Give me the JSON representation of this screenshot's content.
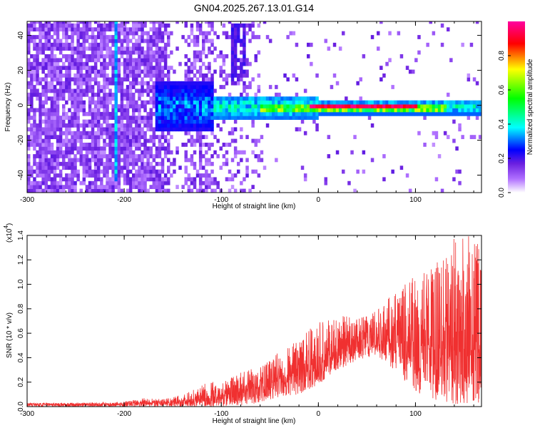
{
  "title": "GN04.2025.267.13.01.G14",
  "chart_data": [
    {
      "type": "heatmap",
      "xlabel": "Height of straight line (km)",
      "ylabel": "Frequency (Hz)",
      "xlim": [
        -300,
        168
      ],
      "ylim": [
        -50,
        48
      ],
      "xticks": [
        -300,
        -200,
        -100,
        0,
        100
      ],
      "yticks": [
        -40,
        -20,
        0,
        20,
        40
      ],
      "grid": false,
      "colorbar": {
        "label": "Normalized spectral amplitude",
        "range": [
          0.0,
          1.0
        ],
        "ticks": [
          0.0,
          0.2,
          0.4,
          0.6,
          0.8
        ],
        "colormap": [
          "#ffffff",
          "#6a1fe0",
          "#0000ff",
          "#00ffff",
          "#00ff00",
          "#ffff00",
          "#ff0000",
          "#ff00a0"
        ]
      },
      "features": [
        {
          "name": "signal-band",
          "x_range": [
            -130,
            168
          ],
          "frequency": -2,
          "description": "narrow band near 0 Hz"
        },
        {
          "name": "peak-segment",
          "x_range": [
            -10,
            100
          ],
          "frequency": -2,
          "amplitude": 1.0
        },
        {
          "name": "vertical-streak",
          "x": -210,
          "frequency_range": [
            -45,
            48
          ]
        },
        {
          "name": "upper-blob",
          "x": -85,
          "frequency_range": [
            10,
            45
          ]
        }
      ]
    },
    {
      "type": "line",
      "xlabel": "Height of straight line (km)",
      "ylabel": "SNR (10 * v/v)",
      "y_multiplier": "(x10",
      "y_multiplier_exp": "4",
      "xlim": [
        -300,
        168
      ],
      "ylim": [
        0.0,
        1.4
      ],
      "xticks": [
        -300,
        -200,
        -100,
        0,
        100
      ],
      "yticks": [
        0.0,
        0.2,
        0.4,
        0.6,
        0.8,
        1.0,
        1.2,
        1.4
      ],
      "color": "#f03030",
      "grid": false,
      "series": [
        {
          "x": [
            -300,
            -250,
            -200,
            -180,
            -160,
            -140,
            -120,
            -100,
            -80,
            -60,
            -40,
            -20,
            0,
            20,
            40,
            60,
            80,
            100,
            120,
            140,
            160,
            168
          ],
          "y_mean": [
            0.02,
            0.02,
            0.02,
            0.03,
            0.03,
            0.04,
            0.06,
            0.08,
            0.12,
            0.16,
            0.21,
            0.27,
            0.35,
            0.45,
            0.52,
            0.55,
            0.54,
            0.5,
            0.48,
            0.46,
            0.44,
            0.44
          ],
          "y_max": [
            0.03,
            0.03,
            0.04,
            0.07,
            0.06,
            0.1,
            0.18,
            0.22,
            0.28,
            0.33,
            0.45,
            0.55,
            0.7,
            0.75,
            0.72,
            0.78,
            0.95,
            1.1,
            1.2,
            1.4,
            1.4,
            1.4
          ],
          "y_min": [
            0.0,
            0.0,
            0.0,
            0.0,
            0.0,
            0.0,
            0.0,
            0.0,
            0.01,
            0.03,
            0.08,
            0.1,
            0.18,
            0.3,
            0.38,
            0.42,
            0.28,
            0.12,
            0.05,
            0.02,
            0.02,
            0.03
          ]
        }
      ]
    }
  ]
}
